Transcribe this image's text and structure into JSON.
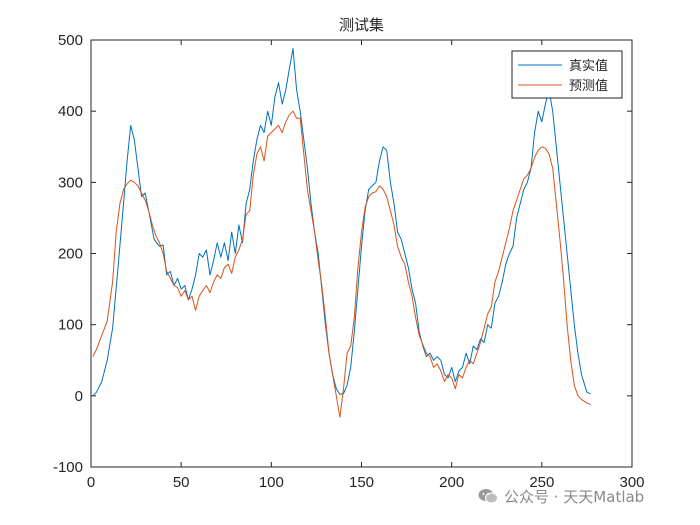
{
  "chart_data": {
    "type": "line",
    "title": "测试集",
    "xlabel": "",
    "ylabel": "",
    "xlim": [
      0,
      300
    ],
    "ylim": [
      -100,
      500
    ],
    "xticks": [
      0,
      50,
      100,
      150,
      200,
      250,
      300
    ],
    "yticks": [
      -100,
      0,
      100,
      200,
      300,
      400,
      500
    ],
    "grid": false,
    "legend_position": "top-right",
    "series": [
      {
        "name": "真实值",
        "color": "#0072BD",
        "points": [
          [
            1,
            0
          ],
          [
            3,
            5
          ],
          [
            6,
            20
          ],
          [
            9,
            50
          ],
          [
            12,
            95
          ],
          [
            15,
            180
          ],
          [
            18,
            270
          ],
          [
            20,
            330
          ],
          [
            22,
            380
          ],
          [
            24,
            360
          ],
          [
            26,
            320
          ],
          [
            28,
            280
          ],
          [
            30,
            285
          ],
          [
            32,
            260
          ],
          [
            35,
            220
          ],
          [
            38,
            210
          ],
          [
            40,
            212
          ],
          [
            42,
            170
          ],
          [
            44,
            175
          ],
          [
            46,
            155
          ],
          [
            48,
            165
          ],
          [
            50,
            150
          ],
          [
            52,
            155
          ],
          [
            54,
            135
          ],
          [
            56,
            150
          ],
          [
            58,
            170
          ],
          [
            60,
            200
          ],
          [
            62,
            195
          ],
          [
            64,
            205
          ],
          [
            66,
            170
          ],
          [
            68,
            190
          ],
          [
            70,
            215
          ],
          [
            72,
            195
          ],
          [
            74,
            215
          ],
          [
            76,
            190
          ],
          [
            78,
            230
          ],
          [
            80,
            200
          ],
          [
            82,
            240
          ],
          [
            84,
            215
          ],
          [
            86,
            270
          ],
          [
            88,
            290
          ],
          [
            90,
            330
          ],
          [
            92,
            360
          ],
          [
            94,
            380
          ],
          [
            96,
            370
          ],
          [
            98,
            400
          ],
          [
            100,
            380
          ],
          [
            102,
            420
          ],
          [
            104,
            440
          ],
          [
            106,
            410
          ],
          [
            108,
            430
          ],
          [
            110,
            460
          ],
          [
            112,
            488
          ],
          [
            114,
            430
          ],
          [
            116,
            400
          ],
          [
            118,
            360
          ],
          [
            120,
            320
          ],
          [
            122,
            270
          ],
          [
            124,
            230
          ],
          [
            126,
            200
          ],
          [
            128,
            150
          ],
          [
            130,
            100
          ],
          [
            132,
            60
          ],
          [
            134,
            30
          ],
          [
            136,
            10
          ],
          [
            138,
            2
          ],
          [
            140,
            3
          ],
          [
            142,
            15
          ],
          [
            144,
            40
          ],
          [
            146,
            90
          ],
          [
            148,
            150
          ],
          [
            150,
            210
          ],
          [
            152,
            260
          ],
          [
            154,
            290
          ],
          [
            156,
            295
          ],
          [
            158,
            300
          ],
          [
            160,
            330
          ],
          [
            162,
            350
          ],
          [
            164,
            345
          ],
          [
            166,
            300
          ],
          [
            168,
            270
          ],
          [
            170,
            230
          ],
          [
            172,
            220
          ],
          [
            174,
            200
          ],
          [
            176,
            180
          ],
          [
            178,
            150
          ],
          [
            180,
            130
          ],
          [
            182,
            90
          ],
          [
            184,
            70
          ],
          [
            186,
            55
          ],
          [
            188,
            60
          ],
          [
            190,
            50
          ],
          [
            192,
            55
          ],
          [
            194,
            50
          ],
          [
            196,
            30
          ],
          [
            198,
            25
          ],
          [
            200,
            40
          ],
          [
            202,
            20
          ],
          [
            204,
            35
          ],
          [
            206,
            40
          ],
          [
            208,
            60
          ],
          [
            210,
            45
          ],
          [
            212,
            70
          ],
          [
            214,
            65
          ],
          [
            216,
            80
          ],
          [
            218,
            75
          ],
          [
            220,
            100
          ],
          [
            222,
            95
          ],
          [
            224,
            130
          ],
          [
            226,
            140
          ],
          [
            228,
            160
          ],
          [
            230,
            185
          ],
          [
            232,
            200
          ],
          [
            234,
            210
          ],
          [
            236,
            250
          ],
          [
            238,
            270
          ],
          [
            240,
            290
          ],
          [
            242,
            300
          ],
          [
            244,
            320
          ],
          [
            246,
            370
          ],
          [
            248,
            400
          ],
          [
            250,
            385
          ],
          [
            252,
            410
          ],
          [
            254,
            430
          ],
          [
            256,
            400
          ],
          [
            258,
            350
          ],
          [
            260,
            300
          ],
          [
            262,
            250
          ],
          [
            264,
            200
          ],
          [
            266,
            150
          ],
          [
            268,
            100
          ],
          [
            270,
            60
          ],
          [
            272,
            30
          ],
          [
            275,
            5
          ],
          [
            277,
            3
          ]
        ]
      },
      {
        "name": "预测值",
        "color": "#D95319",
        "points": [
          [
            1,
            55
          ],
          [
            3,
            65
          ],
          [
            6,
            85
          ],
          [
            9,
            105
          ],
          [
            12,
            160
          ],
          [
            14,
            230
          ],
          [
            16,
            270
          ],
          [
            18,
            290
          ],
          [
            20,
            298
          ],
          [
            22,
            303
          ],
          [
            24,
            300
          ],
          [
            26,
            295
          ],
          [
            28,
            285
          ],
          [
            30,
            275
          ],
          [
            32,
            260
          ],
          [
            34,
            240
          ],
          [
            36,
            225
          ],
          [
            38,
            215
          ],
          [
            40,
            200
          ],
          [
            42,
            175
          ],
          [
            44,
            165
          ],
          [
            46,
            155
          ],
          [
            48,
            152
          ],
          [
            50,
            140
          ],
          [
            52,
            148
          ],
          [
            54,
            135
          ],
          [
            56,
            140
          ],
          [
            58,
            120
          ],
          [
            60,
            140
          ],
          [
            62,
            148
          ],
          [
            64,
            155
          ],
          [
            66,
            145
          ],
          [
            68,
            160
          ],
          [
            70,
            170
          ],
          [
            72,
            165
          ],
          [
            74,
            180
          ],
          [
            76,
            185
          ],
          [
            78,
            172
          ],
          [
            80,
            195
          ],
          [
            82,
            205
          ],
          [
            84,
            220
          ],
          [
            86,
            255
          ],
          [
            88,
            260
          ],
          [
            90,
            310
          ],
          [
            92,
            340
          ],
          [
            94,
            350
          ],
          [
            96,
            330
          ],
          [
            98,
            365
          ],
          [
            100,
            370
          ],
          [
            102,
            375
          ],
          [
            104,
            380
          ],
          [
            106,
            370
          ],
          [
            108,
            385
          ],
          [
            110,
            395
          ],
          [
            112,
            400
          ],
          [
            114,
            390
          ],
          [
            116,
            390
          ],
          [
            118,
            340
          ],
          [
            120,
            290
          ],
          [
            122,
            260
          ],
          [
            124,
            230
          ],
          [
            126,
            190
          ],
          [
            128,
            155
          ],
          [
            130,
            110
          ],
          [
            132,
            60
          ],
          [
            134,
            30
          ],
          [
            136,
            0
          ],
          [
            138,
            -30
          ],
          [
            140,
            10
          ],
          [
            142,
            60
          ],
          [
            144,
            70
          ],
          [
            146,
            110
          ],
          [
            148,
            180
          ],
          [
            150,
            230
          ],
          [
            152,
            265
          ],
          [
            154,
            280
          ],
          [
            156,
            285
          ],
          [
            158,
            287
          ],
          [
            160,
            295
          ],
          [
            162,
            290
          ],
          [
            164,
            280
          ],
          [
            166,
            260
          ],
          [
            168,
            240
          ],
          [
            170,
            210
          ],
          [
            172,
            195
          ],
          [
            174,
            185
          ],
          [
            176,
            160
          ],
          [
            178,
            140
          ],
          [
            180,
            110
          ],
          [
            182,
            85
          ],
          [
            184,
            72
          ],
          [
            186,
            60
          ],
          [
            188,
            55
          ],
          [
            190,
            40
          ],
          [
            192,
            45
          ],
          [
            194,
            35
          ],
          [
            196,
            20
          ],
          [
            198,
            30
          ],
          [
            200,
            25
          ],
          [
            202,
            10
          ],
          [
            204,
            30
          ],
          [
            206,
            25
          ],
          [
            208,
            40
          ],
          [
            210,
            50
          ],
          [
            212,
            45
          ],
          [
            214,
            60
          ],
          [
            216,
            75
          ],
          [
            218,
            95
          ],
          [
            220,
            115
          ],
          [
            222,
            125
          ],
          [
            224,
            160
          ],
          [
            226,
            175
          ],
          [
            228,
            195
          ],
          [
            230,
            215
          ],
          [
            232,
            235
          ],
          [
            234,
            260
          ],
          [
            236,
            275
          ],
          [
            238,
            290
          ],
          [
            240,
            305
          ],
          [
            242,
            310
          ],
          [
            244,
            320
          ],
          [
            246,
            335
          ],
          [
            248,
            345
          ],
          [
            250,
            350
          ],
          [
            252,
            348
          ],
          [
            254,
            340
          ],
          [
            256,
            320
          ],
          [
            258,
            270
          ],
          [
            260,
            220
          ],
          [
            262,
            165
          ],
          [
            264,
            100
          ],
          [
            266,
            50
          ],
          [
            268,
            15
          ],
          [
            270,
            0
          ],
          [
            272,
            -5
          ],
          [
            275,
            -10
          ],
          [
            277,
            -12
          ]
        ]
      }
    ]
  },
  "watermark": {
    "icon": "wechat-icon",
    "text": "公众号 · 天天Matlab"
  }
}
